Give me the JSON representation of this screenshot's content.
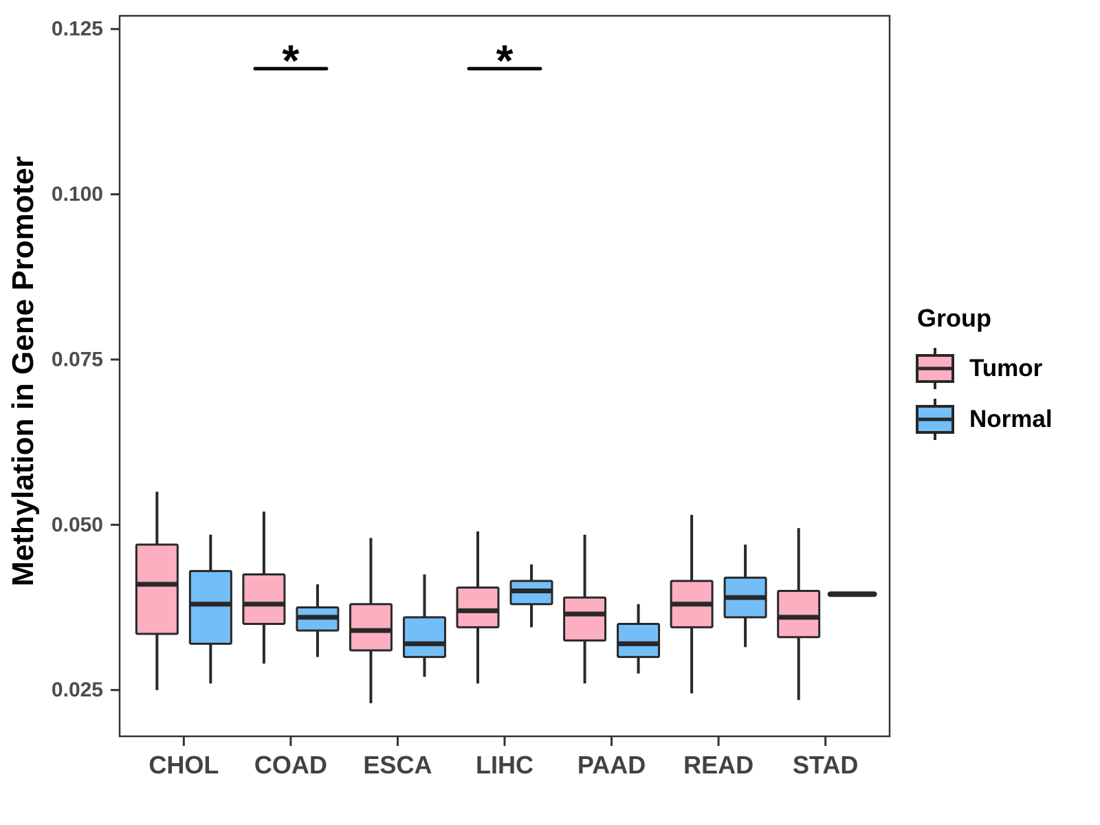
{
  "chart_data": {
    "type": "boxplot",
    "title": "",
    "xlabel": "",
    "ylabel": "Methylation in Gene Promoter",
    "categories": [
      "CHOL",
      "COAD",
      "ESCA",
      "LIHC",
      "PAAD",
      "READ",
      "STAD"
    ],
    "ylim": [
      0.018,
      0.127
    ],
    "yticks": [
      {
        "value": 0.025,
        "label": "0.025"
      },
      {
        "value": 0.05,
        "label": "0.050"
      },
      {
        "value": 0.075,
        "label": "0.075"
      },
      {
        "value": 0.1,
        "label": "0.100"
      },
      {
        "value": 0.125,
        "label": "0.125"
      }
    ],
    "grid": "off",
    "legend": {
      "title": "Group",
      "position": "right"
    },
    "series": [
      {
        "name": "Tumor",
        "fill": "#FBAFC0",
        "boxes": [
          {
            "category": "CHOL",
            "min": 0.025,
            "q1": 0.0335,
            "median": 0.041,
            "q3": 0.047,
            "max": 0.055
          },
          {
            "category": "COAD",
            "min": 0.029,
            "q1": 0.035,
            "median": 0.038,
            "q3": 0.0425,
            "max": 0.052
          },
          {
            "category": "ESCA",
            "min": 0.023,
            "q1": 0.031,
            "median": 0.034,
            "q3": 0.038,
            "max": 0.048
          },
          {
            "category": "LIHC",
            "min": 0.026,
            "q1": 0.0345,
            "median": 0.037,
            "q3": 0.0405,
            "max": 0.049
          },
          {
            "category": "PAAD",
            "min": 0.026,
            "q1": 0.0325,
            "median": 0.0365,
            "q3": 0.039,
            "max": 0.0485
          },
          {
            "category": "READ",
            "min": 0.0245,
            "q1": 0.0345,
            "median": 0.038,
            "q3": 0.0415,
            "max": 0.0515
          },
          {
            "category": "STAD",
            "min": 0.0235,
            "q1": 0.033,
            "median": 0.036,
            "q3": 0.04,
            "max": 0.0495
          }
        ]
      },
      {
        "name": "Normal",
        "fill": "#74BEF8",
        "boxes": [
          {
            "category": "CHOL",
            "min": 0.026,
            "q1": 0.032,
            "median": 0.038,
            "q3": 0.043,
            "max": 0.0485
          },
          {
            "category": "COAD",
            "min": 0.03,
            "q1": 0.034,
            "median": 0.036,
            "q3": 0.0375,
            "max": 0.041
          },
          {
            "category": "ESCA",
            "min": 0.027,
            "q1": 0.03,
            "median": 0.032,
            "q3": 0.036,
            "max": 0.0425
          },
          {
            "category": "LIHC",
            "min": 0.0345,
            "q1": 0.038,
            "median": 0.04,
            "q3": 0.0415,
            "max": 0.044
          },
          {
            "category": "PAAD",
            "min": 0.0275,
            "q1": 0.03,
            "median": 0.032,
            "q3": 0.035,
            "max": 0.038
          },
          {
            "category": "READ",
            "min": 0.0315,
            "q1": 0.036,
            "median": 0.039,
            "q3": 0.042,
            "max": 0.047
          },
          {
            "category": "STAD",
            "min": 0.0395,
            "q1": 0.0395,
            "median": 0.0395,
            "q3": 0.0395,
            "max": 0.0395
          }
        ]
      }
    ],
    "significance": [
      {
        "category": "COAD",
        "label": "*",
        "bar_value": 0.119
      },
      {
        "category": "LIHC",
        "label": "*",
        "bar_value": 0.119
      }
    ],
    "style": {
      "box_stroke": "#282828",
      "panel_border": "#333333",
      "tick_color": "#333333",
      "tick_label_color": "#4D4D4D",
      "category_label_color": "#424242",
      "significance_color": "#000000"
    }
  }
}
